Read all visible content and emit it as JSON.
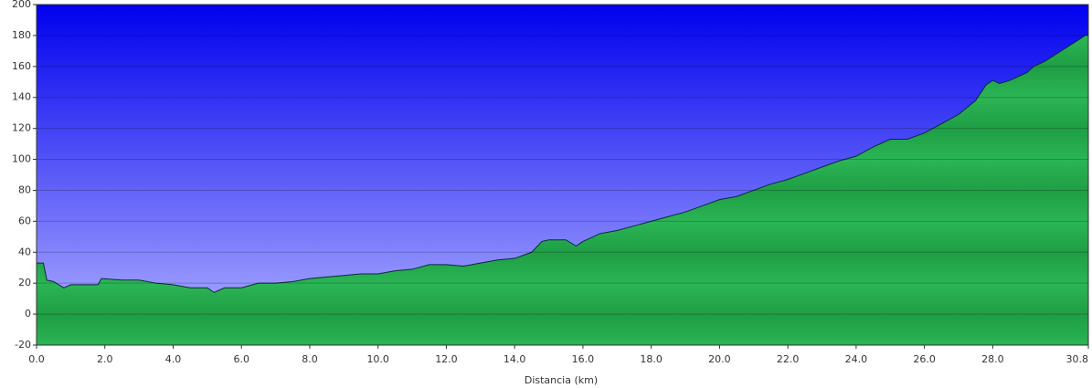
{
  "chart_data": {
    "type": "area",
    "x_label": "Distancia   (km)",
    "x": [
      0,
      0.2,
      0.3,
      0.5,
      0.8,
      1.0,
      1.5,
      1.8,
      1.9,
      2.5,
      3.0,
      3.5,
      4.0,
      4.5,
      5.0,
      5.2,
      5.5,
      6.0,
      6.5,
      7.0,
      7.5,
      8.0,
      8.5,
      9.0,
      9.5,
      10.0,
      10.5,
      11.0,
      11.5,
      12.0,
      12.5,
      13.0,
      13.5,
      14.0,
      14.5,
      14.8,
      15.0,
      15.5,
      15.8,
      16.0,
      16.5,
      17.0,
      17.5,
      18.0,
      18.5,
      19.0,
      19.5,
      20.0,
      20.5,
      21.0,
      21.5,
      22.0,
      22.5,
      23.0,
      23.5,
      24.0,
      24.5,
      25.0,
      25.5,
      26.0,
      26.5,
      27.0,
      27.5,
      27.8,
      28.0,
      28.2,
      28.5,
      29.0,
      29.2,
      29.5,
      30.0,
      30.5,
      30.7,
      30.8
    ],
    "values": [
      33,
      33,
      22,
      21,
      17,
      19,
      19,
      19,
      23,
      22,
      22,
      20,
      19,
      17,
      17,
      14,
      17,
      17,
      20,
      20,
      21,
      23,
      24,
      25,
      26,
      26,
      28,
      29,
      32,
      32,
      31,
      33,
      35,
      36,
      40,
      47,
      48,
      48,
      44,
      47,
      52,
      54,
      57,
      60,
      63,
      66,
      70,
      74,
      76,
      80,
      84,
      87,
      91,
      95,
      99,
      102,
      108,
      113,
      113,
      117,
      123,
      129,
      138,
      148,
      151,
      149,
      151,
      156,
      160,
      163,
      170,
      177,
      180,
      180
    ],
    "color": "#22aa4a",
    "xlim": [
      0,
      30.8
    ],
    "xticks": [
      {
        "value": 0,
        "label": "0.0"
      },
      {
        "value": 2,
        "label": "2.0"
      },
      {
        "value": 4,
        "label": "4.0"
      },
      {
        "value": 6,
        "label": "6.0"
      },
      {
        "value": 8,
        "label": "8.0"
      },
      {
        "value": 10,
        "label": "10.0"
      },
      {
        "value": 12,
        "label": "12.0"
      },
      {
        "value": 14,
        "label": "14.0"
      },
      {
        "value": 16,
        "label": "16.0"
      },
      {
        "value": 18,
        "label": "18.0"
      },
      {
        "value": 20,
        "label": "20.0"
      },
      {
        "value": 22,
        "label": "22.0"
      },
      {
        "value": 24,
        "label": "24.0"
      },
      {
        "value": 26,
        "label": "26.0"
      },
      {
        "value": 28,
        "label": "28.0"
      },
      30.8
    ],
    "ylim": [
      -20,
      200
    ],
    "yticks": [
      -20,
      0,
      20,
      40,
      60,
      80,
      100,
      120,
      140,
      160,
      180,
      200
    ],
    "grid": true
  }
}
